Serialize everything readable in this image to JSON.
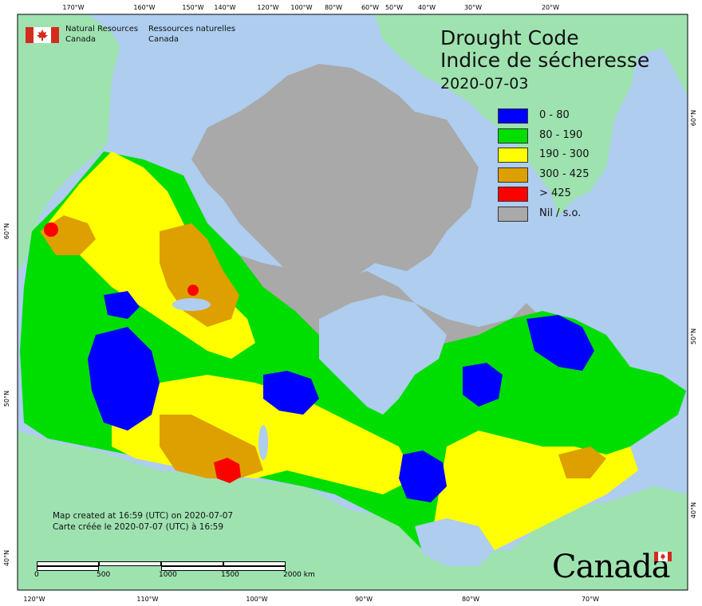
{
  "title": {
    "line1": "Drought Code",
    "line2": "Indice de sécheresse",
    "date": "2020-07-03"
  },
  "org": {
    "en_line1": "Natural Resources",
    "en_line2": "Canada",
    "fr_line1": "Ressources naturelles",
    "fr_line2": "Canada"
  },
  "legend": [
    {
      "label": "0 - 80",
      "color": "#0000ff"
    },
    {
      "label": "80 - 190",
      "color": "#00dd00"
    },
    {
      "label": "190 - 300",
      "color": "#ffff00"
    },
    {
      "label": "300 - 425",
      "color": "#dda000"
    },
    {
      "label": "> 425",
      "color": "#ff0000"
    },
    {
      "label": "Nil / s.o.",
      "color": "#a9a9a9"
    }
  ],
  "credit": {
    "en": "Map created at 16:59 (UTC) on 2020-07-07",
    "fr": "Carte créée le 2020-07-07 (UTC) à 16:59"
  },
  "scale": {
    "labels": [
      "0",
      "500",
      "1000",
      "1500",
      "2000  km"
    ]
  },
  "top_ticks": [
    "170°W",
    "160°W",
    "150°W",
    "140°W",
    "120°W",
    "100°W",
    "80°W",
    "60°W",
    "50°W",
    "40°W",
    "30°W",
    "20°W"
  ],
  "bottom_ticks": [
    "120°W",
    "110°W",
    "100°W",
    "90°W",
    "80°W",
    "70°W"
  ],
  "left_ticks": [
    "60°N",
    "50°N",
    "40°N"
  ],
  "right_ticks": [
    "60°N",
    "50°N",
    "40°N"
  ],
  "wordmark": "Canada",
  "colors": {
    "ocean": "#aecdef",
    "foreign_land": "#9ee2b0",
    "nil": "#a9a9a9"
  }
}
